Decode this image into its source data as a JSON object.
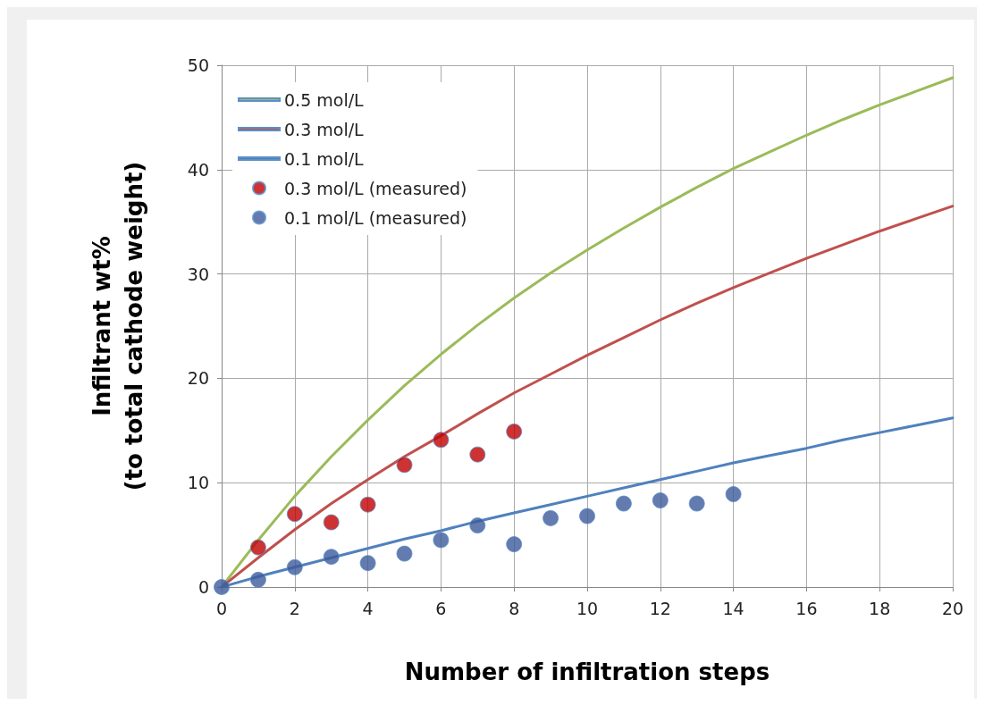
{
  "chart_data": {
    "type": "line",
    "xlabel": "Number of infiltration steps",
    "ylabel": "Infiltrant wt%\n(to total cathode weight)",
    "xlim": [
      0,
      20
    ],
    "xticks": [
      0,
      2,
      4,
      6,
      8,
      10,
      12,
      14,
      16,
      18,
      20
    ],
    "ylim": [
      0,
      50
    ],
    "yticks": [
      0,
      10,
      20,
      30,
      40,
      50
    ],
    "grid": true,
    "legend": "top left",
    "series": [
      {
        "name": "0.5 mol/L",
        "type": "line",
        "marker": "none",
        "color": "#9bbb59",
        "x": [
          0,
          1,
          2,
          3,
          4,
          5,
          6,
          7,
          8,
          9,
          10,
          11,
          12,
          13,
          14,
          15,
          16,
          17,
          18,
          19,
          20
        ],
        "values": [
          0,
          4.5,
          8.7,
          12.5,
          16,
          19.3,
          22.3,
          25.1,
          27.7,
          30.1,
          32.3,
          34.4,
          36.4,
          38.3,
          40.1,
          41.7,
          43.3,
          44.8,
          46.2,
          47.5,
          48.8
        ]
      },
      {
        "name": "0.3 mol/L",
        "type": "line",
        "marker": "none",
        "color": "#c0504d",
        "x": [
          0,
          1,
          2,
          3,
          4,
          5,
          6,
          7,
          8,
          9,
          10,
          11,
          12,
          13,
          14,
          15,
          16,
          17,
          18,
          19,
          20
        ],
        "values": [
          0,
          2.8,
          5.5,
          8.0,
          10.3,
          12.5,
          14.5,
          16.6,
          18.6,
          20.4,
          22.2,
          23.9,
          25.6,
          27.2,
          28.7,
          30.1,
          31.5,
          32.8,
          34.1,
          35.3,
          36.5
        ]
      },
      {
        "name": "0.1 mol/L",
        "type": "line",
        "marker": "none",
        "color": "#4f81bd",
        "x": [
          0,
          1,
          2,
          3,
          4,
          5,
          6,
          7,
          8,
          9,
          10,
          11,
          12,
          13,
          14,
          15,
          16,
          17,
          18,
          19,
          20
        ],
        "values": [
          0,
          1.0,
          1.9,
          2.8,
          3.7,
          4.6,
          5.4,
          6.3,
          7.1,
          7.9,
          8.7,
          9.5,
          10.3,
          11.1,
          11.9,
          12.6,
          13.3,
          14.1,
          14.8,
          15.5,
          16.2
        ]
      },
      {
        "name": "0.3 mol/L (measured)",
        "type": "scatter",
        "marker": "circle",
        "color": "#c00000",
        "x": [
          1,
          2,
          3,
          4,
          5,
          6,
          7,
          8
        ],
        "values": [
          3.8,
          7.0,
          6.2,
          7.9,
          11.7,
          14.1,
          12.7,
          14.9
        ]
      },
      {
        "name": "0.1 mol/L (measured)",
        "type": "scatter",
        "marker": "circle",
        "color": "#3c5a9a",
        "x": [
          0,
          1,
          2,
          3,
          4,
          5,
          6,
          7,
          8,
          9,
          10,
          11,
          12,
          13,
          14
        ],
        "values": [
          0,
          0.7,
          1.9,
          2.9,
          2.3,
          3.2,
          4.5,
          5.9,
          4.1,
          6.6,
          6.8,
          8.0,
          8.3,
          8.0,
          8.9
        ]
      }
    ]
  }
}
